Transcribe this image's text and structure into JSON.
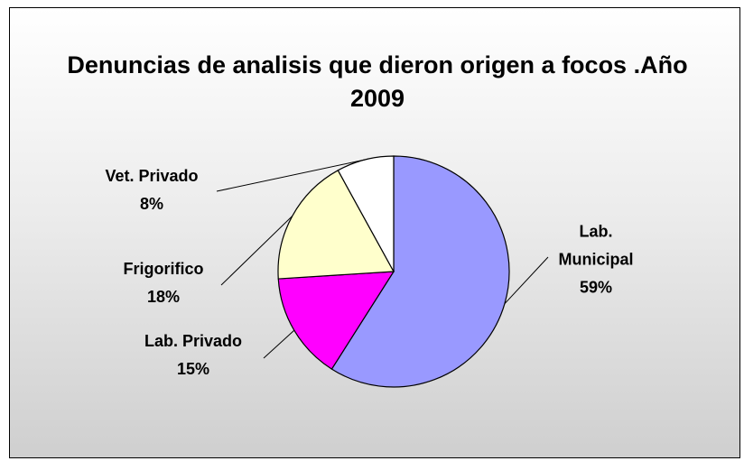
{
  "chart_data": {
    "type": "pie",
    "title": "Denuncias de analisis que dieron origen a focos .Año 2009",
    "categories": [
      "Lab. Municipal",
      "Lab. Privado",
      "Frigorifico",
      "Vet. Privado"
    ],
    "values": [
      59,
      15,
      18,
      8
    ],
    "value_labels": [
      "59%",
      "15%",
      "18%",
      "8%"
    ],
    "colors": [
      "#9999ff",
      "#ff00ff",
      "#ffffcc",
      "#ffffff"
    ]
  }
}
